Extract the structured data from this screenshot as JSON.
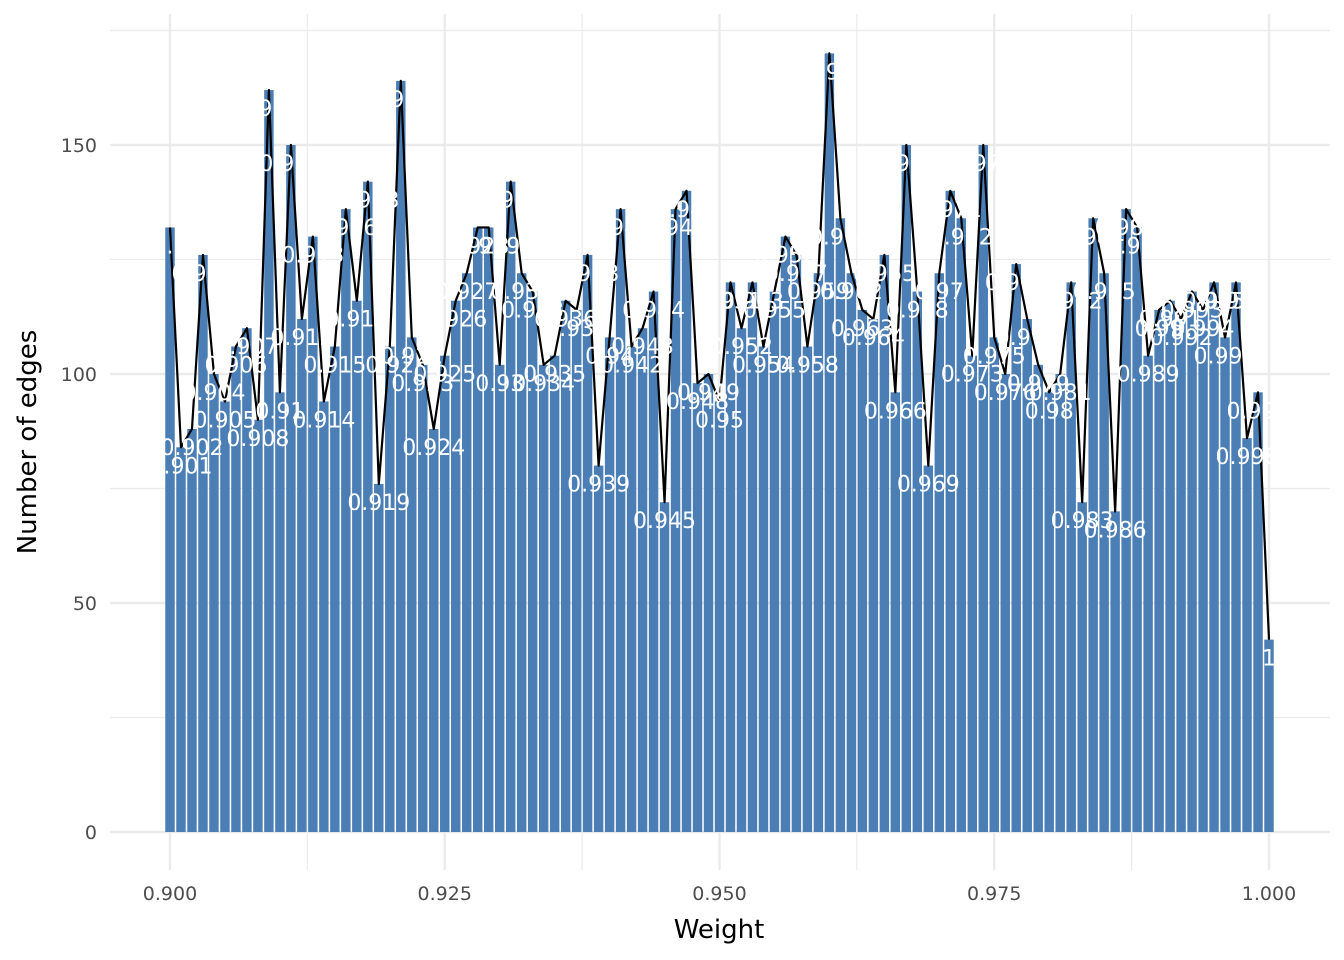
{
  "chart_data": {
    "type": "bar",
    "xlabel": "Weight",
    "ylabel": "Number of edges",
    "xlim": [
      0.895,
      1.002
    ],
    "ylim": [
      -8,
      175
    ],
    "x_ticks": [
      "0.900",
      "0.925",
      "0.950",
      "0.975",
      "1.000"
    ],
    "x_tick_values": [
      0.9,
      0.925,
      0.95,
      0.975,
      1.0
    ],
    "y_ticks": [
      "0",
      "50",
      "100",
      "150"
    ],
    "y_tick_values": [
      0,
      50,
      100,
      150
    ],
    "grid": true,
    "bar_color": "#4a7eb4",
    "line_color": "#000000",
    "label_color": "#ffffff",
    "x": [
      0.9,
      0.901,
      0.902,
      0.903,
      0.904,
      0.905,
      0.906,
      0.907,
      0.908,
      0.909,
      0.91,
      0.911,
      0.912,
      0.913,
      0.914,
      0.915,
      0.916,
      0.917,
      0.918,
      0.919,
      0.92,
      0.921,
      0.922,
      0.923,
      0.924,
      0.925,
      0.926,
      0.927,
      0.928,
      0.929,
      0.93,
      0.931,
      0.932,
      0.933,
      0.934,
      0.935,
      0.936,
      0.937,
      0.938,
      0.939,
      0.94,
      0.941,
      0.942,
      0.943,
      0.944,
      0.945,
      0.946,
      0.947,
      0.948,
      0.949,
      0.95,
      0.951,
      0.952,
      0.953,
      0.954,
      0.955,
      0.956,
      0.957,
      0.958,
      0.959,
      0.96,
      0.961,
      0.962,
      0.963,
      0.964,
      0.965,
      0.966,
      0.967,
      0.968,
      0.969,
      0.97,
      0.971,
      0.972,
      0.973,
      0.974,
      0.975,
      0.976,
      0.977,
      0.978,
      0.979,
      0.98,
      0.981,
      0.982,
      0.983,
      0.984,
      0.985,
      0.986,
      0.987,
      0.988,
      0.989,
      0.99,
      0.991,
      0.992,
      0.993,
      0.994,
      0.995,
      0.996,
      0.997,
      0.998,
      0.999,
      1.0
    ],
    "values": [
      132,
      84,
      88,
      126,
      100,
      94,
      106,
      110,
      90,
      162,
      96,
      150,
      112,
      130,
      94,
      106,
      136,
      116,
      142,
      76,
      106,
      164,
      108,
      102,
      88,
      104,
      116,
      122,
      132,
      132,
      102,
      142,
      122,
      118,
      102,
      104,
      116,
      114,
      126,
      80,
      108,
      136,
      106,
      110,
      118,
      72,
      136,
      140,
      98,
      100,
      94,
      120,
      110,
      120,
      106,
      118,
      130,
      126,
      106,
      122,
      170,
      134,
      122,
      114,
      112,
      126,
      96,
      150,
      118,
      80,
      122,
      140,
      134,
      104,
      150,
      108,
      100,
      124,
      112,
      102,
      96,
      100,
      120,
      72,
      134,
      122,
      70,
      136,
      132,
      104,
      114,
      116,
      112,
      118,
      114,
      120,
      108,
      120,
      86,
      96,
      42
    ],
    "labels": [
      "0.9",
      "0.901",
      "0.902",
      "0.903",
      "0.904",
      "0.905",
      "0.906",
      "0.907",
      "0.908",
      "0.909",
      "0.91",
      "0.911",
      "0.912",
      "0.913",
      "0.914",
      "0.915",
      "0.916",
      "0.917",
      "0.918",
      "0.919",
      "0.92",
      "0.921",
      "0.922",
      "0.923",
      "0.924",
      "0.925",
      "0.926",
      "0.927",
      "0.928",
      "0.929",
      "0.93",
      "0.931",
      "0.932",
      "0.933",
      "0.934",
      "0.935",
      "0.936",
      "0.937",
      "0.938",
      "0.939",
      "0.94",
      "0.941",
      "0.942",
      "0.943",
      "0.944",
      "0.945",
      "0.946",
      "0.947",
      "0.948",
      "0.949",
      "0.95",
      "0.951",
      "0.952",
      "0.953",
      "0.954",
      "0.955",
      "0.956",
      "0.957",
      "0.958",
      "0.959",
      "0.96",
      "0.961",
      "0.962",
      "0.963",
      "0.964",
      "0.965",
      "0.966",
      "0.967",
      "0.968",
      "0.969",
      "0.97",
      "0.971",
      "0.972",
      "0.973",
      "0.974",
      "0.975",
      "0.976",
      "0.977",
      "0.978",
      "0.979",
      "0.98",
      "0.981",
      "0.982",
      "0.983",
      "0.984",
      "0.985",
      "0.986",
      "0.987",
      "0.988",
      "0.989",
      "0.99",
      "0.991",
      "0.992",
      "0.993",
      "0.994",
      "0.995",
      "0.996",
      "0.997",
      "0.998",
      "0.999",
      "1"
    ]
  }
}
